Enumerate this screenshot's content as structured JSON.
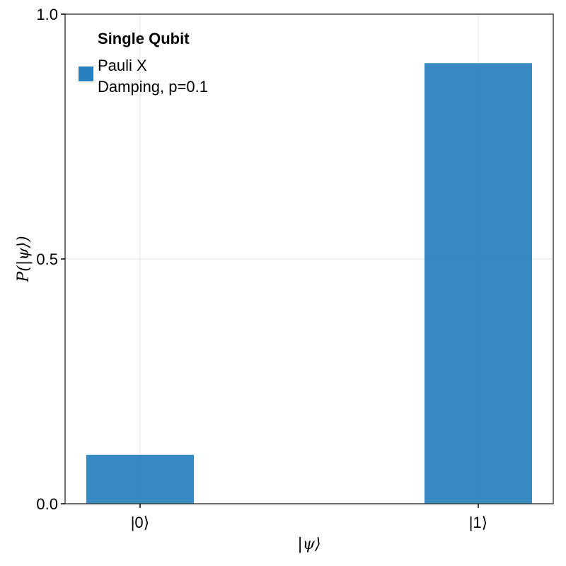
{
  "chart_data": {
    "type": "bar",
    "categories": [
      "|0⟩",
      "|1⟩"
    ],
    "series": [
      {
        "name": "Pauli X\nDamping, p=0.1",
        "values": [
          0.1,
          0.9
        ]
      }
    ],
    "xlabel": "|ψ⟩",
    "ylabel": "P(|ψ⟩)",
    "ylim": [
      0,
      1
    ],
    "yticks": [
      "0.0",
      "0.5",
      "1.0"
    ],
    "grid": true,
    "legend": {
      "title": "Single Qubit",
      "label_lines": [
        "Pauli X",
        "Damping, p=0.1"
      ],
      "placement": "top-left"
    },
    "colors": {
      "bar": "#2780bd",
      "grid": "#e6e6e6",
      "frame": "#444444"
    }
  }
}
